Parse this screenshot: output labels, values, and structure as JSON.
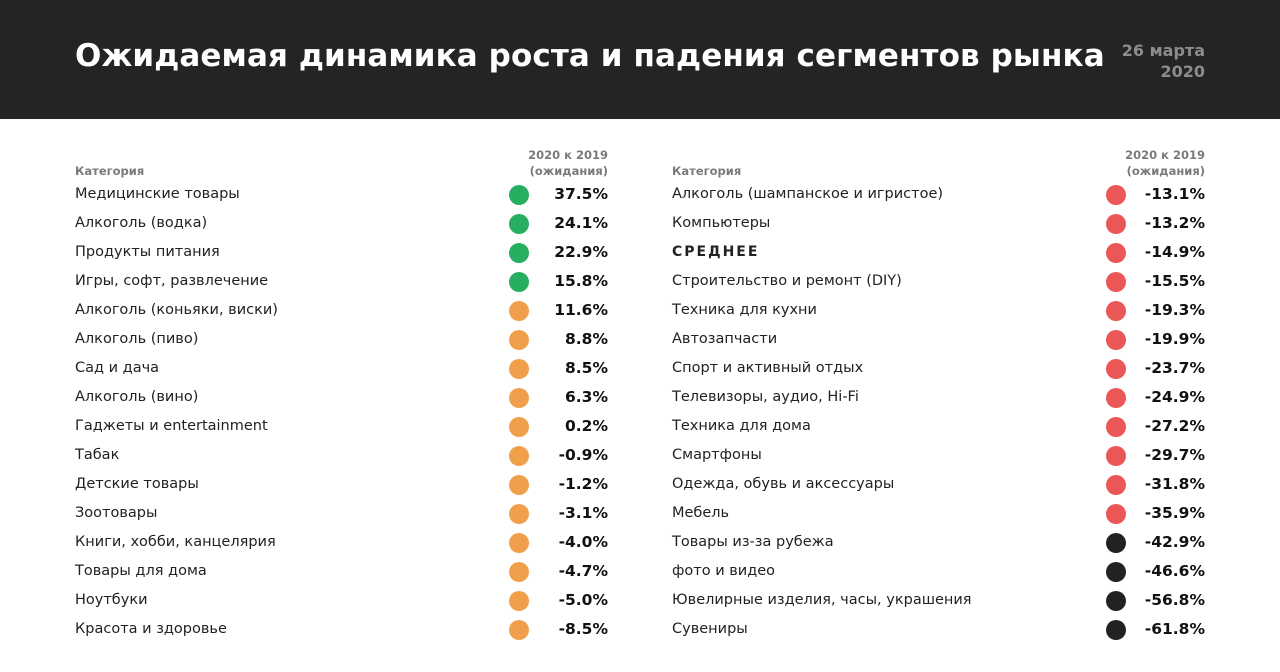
{
  "header": {
    "title": "Ожидаемая динамика роста и падения сегментов рынка",
    "date_line1": "26 марта",
    "date_line2": "2020"
  },
  "colors": {
    "header_bg": "#242424",
    "green": "#27ae60",
    "orange": "#f0a04b",
    "red": "#eb5757",
    "black": "#222222"
  },
  "columns": {
    "category_label": "Категория",
    "value_label_line1": "2020 к 2019",
    "value_label_line2": "(ожидания)"
  },
  "left_rows": [
    {
      "name": "Медицинские товары",
      "value": "37.5%",
      "status": "green"
    },
    {
      "name": "Алкоголь (водка)",
      "value": "24.1%",
      "status": "green"
    },
    {
      "name": "Продукты питания",
      "value": "22.9%",
      "status": "green"
    },
    {
      "name": "Игры, софт, развлечение",
      "value": "15.8%",
      "status": "green"
    },
    {
      "name": "Алкоголь (коньяки, виски)",
      "value": "11.6%",
      "status": "orange"
    },
    {
      "name": "Алкоголь (пиво)",
      "value": "8.8%",
      "status": "orange"
    },
    {
      "name": "Сад и дача",
      "value": "8.5%",
      "status": "orange"
    },
    {
      "name": "Алкоголь (вино)",
      "value": "6.3%",
      "status": "orange"
    },
    {
      "name": "Гаджеты и entertainment",
      "value": "0.2%",
      "status": "orange"
    },
    {
      "name": "Табак",
      "value": "-0.9%",
      "status": "orange"
    },
    {
      "name": "Детские товары",
      "value": "-1.2%",
      "status": "orange"
    },
    {
      "name": "Зоотовары",
      "value": "-3.1%",
      "status": "orange"
    },
    {
      "name": "Книги, хобби, канцелярия",
      "value": "-4.0%",
      "status": "orange"
    },
    {
      "name": "Товары для дома",
      "value": "-4.7%",
      "status": "orange"
    },
    {
      "name": "Ноутбуки",
      "value": "-5.0%",
      "status": "orange"
    },
    {
      "name": "Красота и здоровье",
      "value": "-8.5%",
      "status": "orange"
    }
  ],
  "right_rows": [
    {
      "name": "Алкоголь (шампанское и игристое)",
      "value": "-13.1%",
      "status": "red"
    },
    {
      "name": "Компьютеры",
      "value": "-13.2%",
      "status": "red"
    },
    {
      "name": "СРЕДНЕЕ",
      "value": "-14.9%",
      "status": "red",
      "emphasis": true
    },
    {
      "name": "Строительство и ремонт (DIY)",
      "value": "-15.5%",
      "status": "red"
    },
    {
      "name": "Техника для кухни",
      "value": "-19.3%",
      "status": "red"
    },
    {
      "name": "Автозапчасти",
      "value": "-19.9%",
      "status": "red"
    },
    {
      "name": "Спорт и активный отдых",
      "value": "-23.7%",
      "status": "red"
    },
    {
      "name": "Телевизоры, аудио, Hi-Fi",
      "value": "-24.9%",
      "status": "red"
    },
    {
      "name": "Техника для дома",
      "value": "-27.2%",
      "status": "red"
    },
    {
      "name": "Смартфоны",
      "value": "-29.7%",
      "status": "red"
    },
    {
      "name": "Одежда, обувь и аксессуары",
      "value": "-31.8%",
      "status": "red"
    },
    {
      "name": "Мебель",
      "value": "-35.9%",
      "status": "red"
    },
    {
      "name": "Товары из-за рубежа",
      "value": "-42.9%",
      "status": "black"
    },
    {
      "name": "фото и видео",
      "value": "-46.6%",
      "status": "black"
    },
    {
      "name": "Ювелирные изделия, часы, украшения",
      "value": "-56.8%",
      "status": "black"
    },
    {
      "name": "Сувениры",
      "value": "-61.8%",
      "status": "black"
    }
  ]
}
